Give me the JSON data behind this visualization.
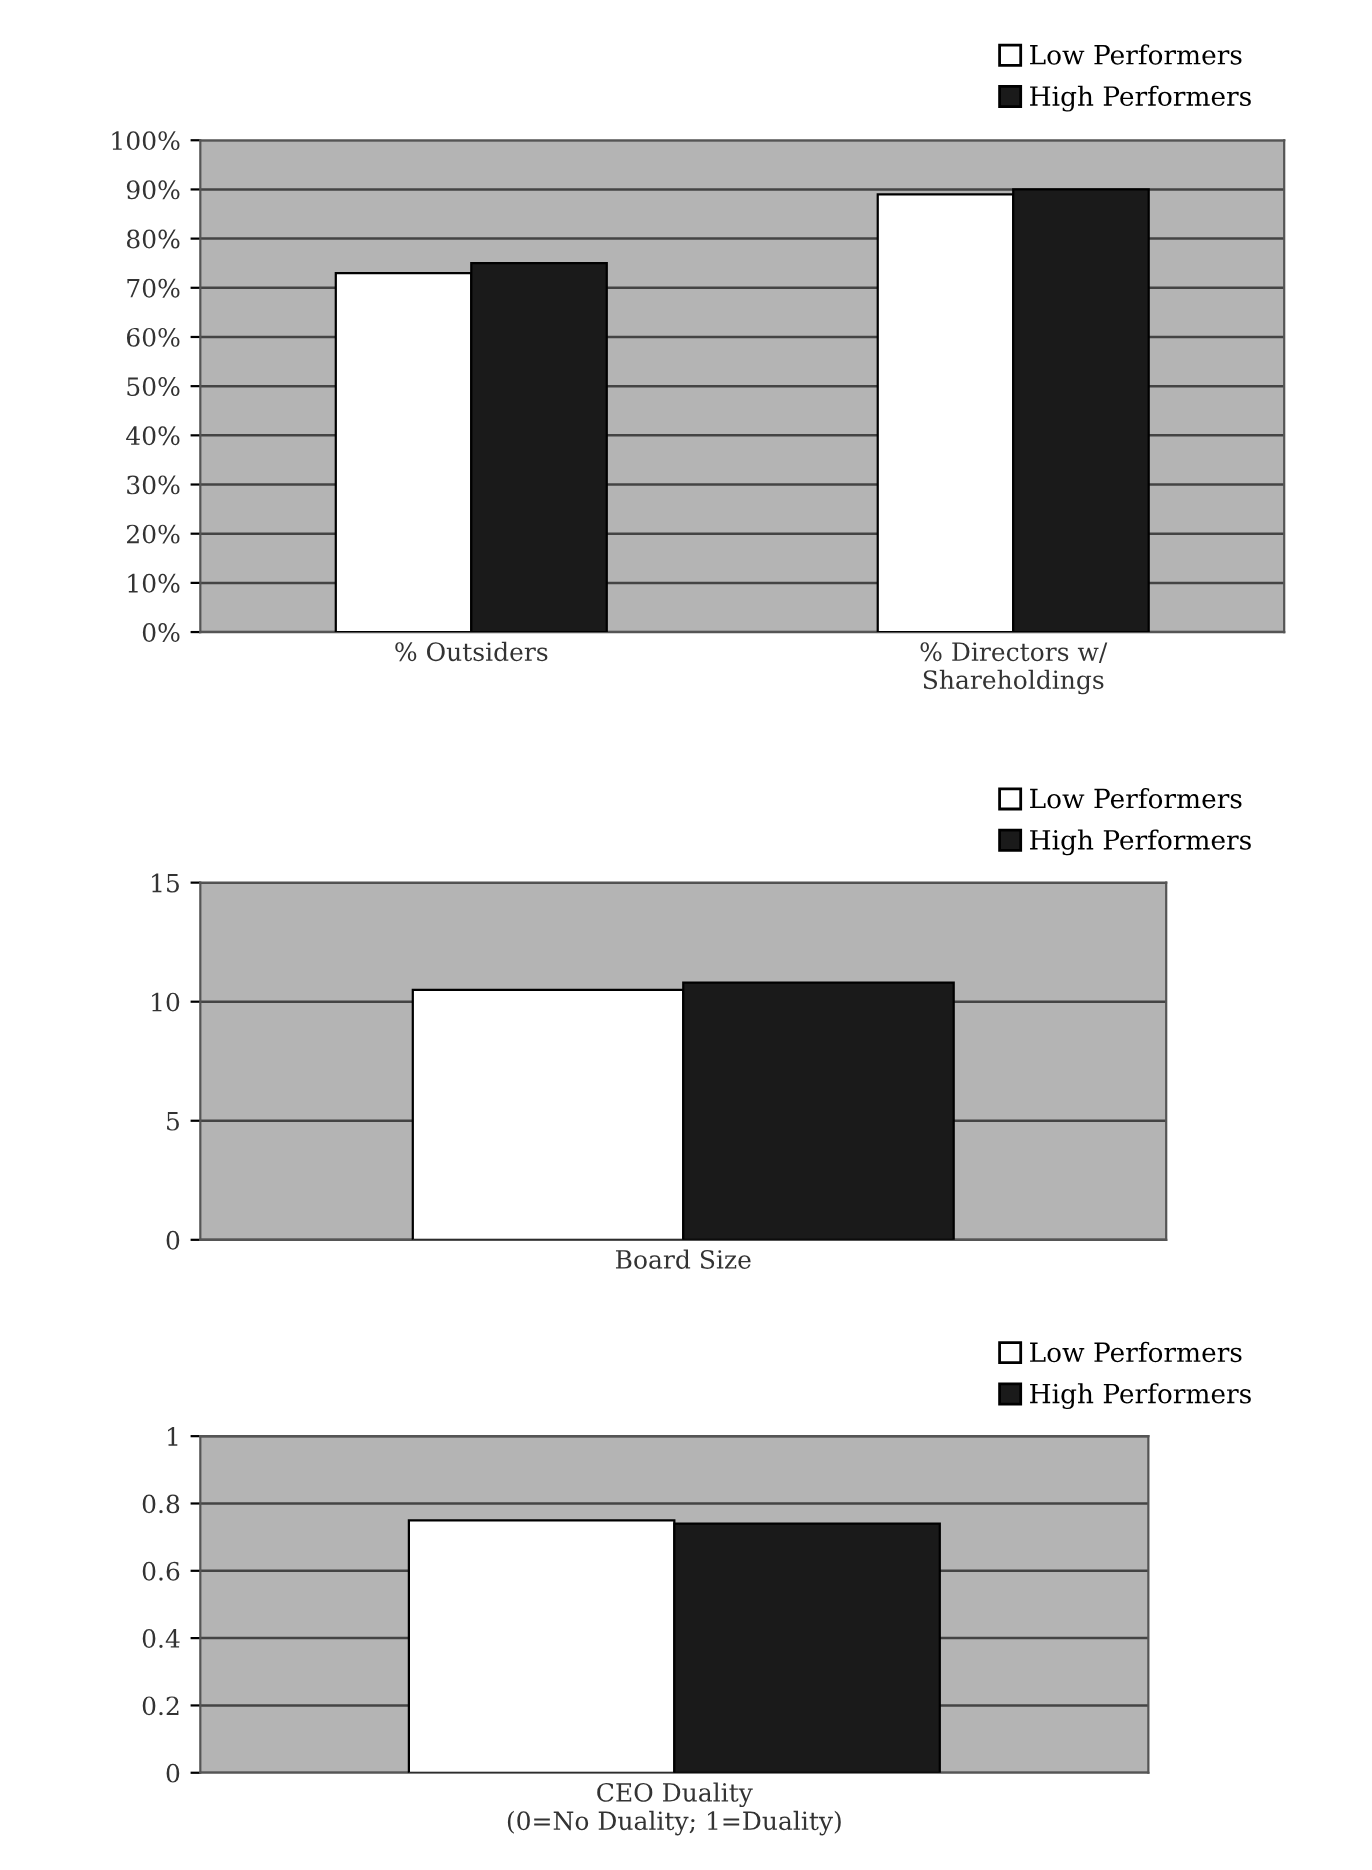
{
  "chart_data": [
    {
      "type": "bar",
      "categories": [
        "% Outsiders",
        "% Directors w/\nShareholdings"
      ],
      "series": [
        {
          "name": "Low Performers",
          "color": "#ffffff",
          "values": [
            73,
            89
          ]
        },
        {
          "name": "High Performers",
          "color": "#1a1a1a",
          "values": [
            75,
            90
          ]
        }
      ],
      "ylim": [
        0,
        100
      ],
      "yticks": [
        {
          "value": 0,
          "label": "0%"
        },
        {
          "value": 10,
          "label": "10%"
        },
        {
          "value": 20,
          "label": "20%"
        },
        {
          "value": 30,
          "label": "30%"
        },
        {
          "value": 40,
          "label": "40%"
        },
        {
          "value": 50,
          "label": "50%"
        },
        {
          "value": 60,
          "label": "60%"
        },
        {
          "value": 70,
          "label": "70%"
        },
        {
          "value": 80,
          "label": "80%"
        },
        {
          "value": 90,
          "label": "90%"
        },
        {
          "value": 100,
          "label": "100%"
        }
      ],
      "grid": "y",
      "legend": "top right"
    },
    {
      "type": "bar",
      "categories": [
        "Board Size"
      ],
      "series": [
        {
          "name": "Low Performers",
          "color": "#ffffff",
          "values": [
            10.5
          ]
        },
        {
          "name": "High Performers",
          "color": "#1a1a1a",
          "values": [
            10.8
          ]
        }
      ],
      "ylim": [
        0,
        15
      ],
      "yticks": [
        0,
        5,
        10,
        15
      ],
      "grid": "y",
      "legend": "top right"
    },
    {
      "type": "bar",
      "categories": [
        "CEO Duality\n(0=No Duality; 1=Duality)"
      ],
      "series": [
        {
          "name": "Low Performers",
          "color": "#ffffff",
          "values": [
            0.75
          ]
        },
        {
          "name": "High Performers",
          "color": "#1a1a1a",
          "values": [
            0.74
          ]
        }
      ],
      "ylim": [
        0,
        1
      ],
      "yticks": [
        0,
        0.2,
        0.4,
        0.6,
        0.8,
        1
      ],
      "grid": "y",
      "legend": "top right"
    }
  ]
}
